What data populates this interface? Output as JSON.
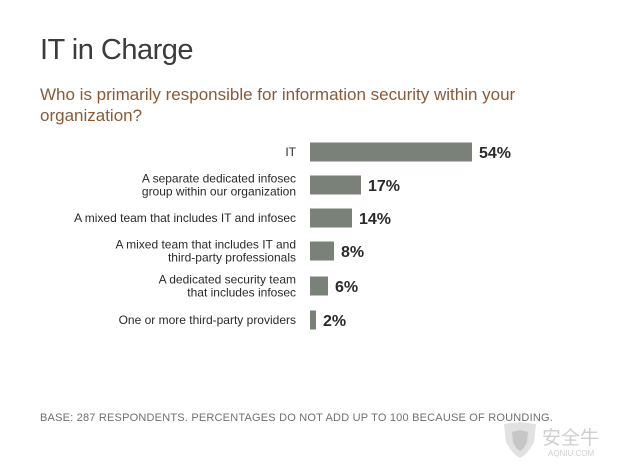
{
  "title": "IT in Charge",
  "subtitle": "Who is primarily responsible for information security within your organization?",
  "footnote": "BASE: 287 RESPONDENTS. PERCENTAGES DO NOT ADD UP TO 100 BECAUSE OF ROUNDING.",
  "watermark": {
    "text": "安全牛",
    "subtext": "AQNIU.COM"
  },
  "colors": {
    "bar": "#7a8178",
    "title": "#3b3b3b",
    "subtitle": "#8a5a35",
    "label": "#2a2a2a"
  },
  "chart_data": {
    "type": "bar",
    "orientation": "horizontal",
    "categories": [
      "IT",
      "A separate dedicated infosec group within our organization",
      "A mixed team that includes IT and infosec",
      "A mixed team that includes IT and third-party professionals",
      "A dedicated security team that includes infosec",
      "One or more third-party providers"
    ],
    "category_lines": [
      [
        "IT"
      ],
      [
        "A separate dedicated infosec",
        "group within our organization"
      ],
      [
        "A mixed team that includes IT and infosec"
      ],
      [
        "A mixed team that includes IT and",
        "third-party professionals"
      ],
      [
        "A dedicated security team",
        "that includes infosec"
      ],
      [
        "One or more third-party providers"
      ]
    ],
    "values": [
      54,
      17,
      14,
      8,
      6,
      2
    ],
    "value_labels": [
      "54%",
      "17%",
      "14%",
      "8%",
      "6%",
      "2%"
    ],
    "xlim": [
      0,
      54
    ],
    "grid": false,
    "legend": "none"
  }
}
